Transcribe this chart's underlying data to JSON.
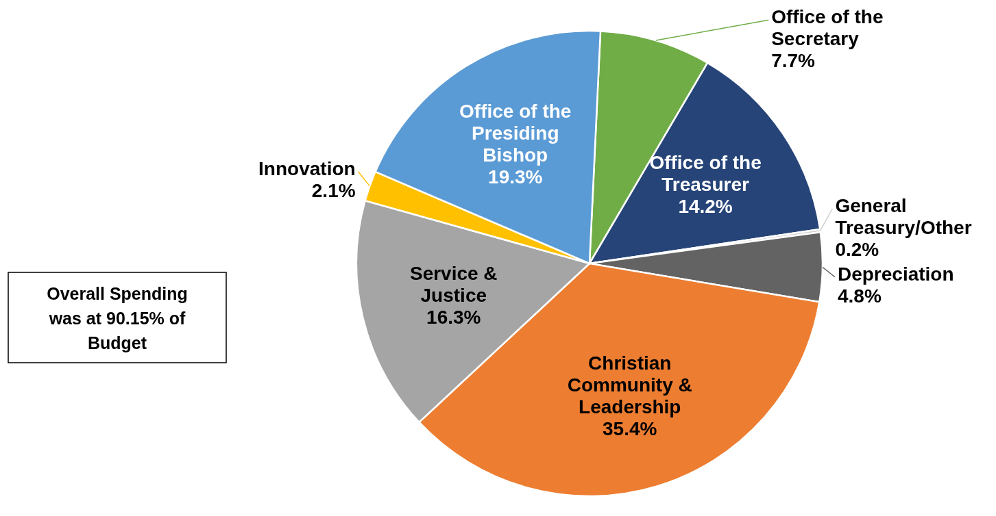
{
  "chart_data": {
    "type": "pie",
    "categories": [
      "Office of the Secretary",
      "Office of the Treasurer",
      "General Treasury/Other",
      "Depreciation",
      "Christian Community & Leadership",
      "Service & Justice",
      "Innovation",
      "Office of the Presiding Bishop"
    ],
    "values": [
      7.7,
      14.2,
      0.2,
      4.8,
      35.4,
      16.3,
      2.1,
      19.3
    ],
    "colors": [
      "#70ad47",
      "#264478",
      "#d0d0d0",
      "#636363",
      "#ed7d31",
      "#a5a5a5",
      "#ffc000",
      "#5b9bd5"
    ],
    "value_labels": [
      "7.7%",
      "14.2%",
      "0.2%",
      "4.8%",
      "35.4%",
      "16.3%",
      "2.1%",
      "19.3%"
    ],
    "annotations": [
      "Overall Spending was at 90.15% of Budget"
    ]
  }
}
